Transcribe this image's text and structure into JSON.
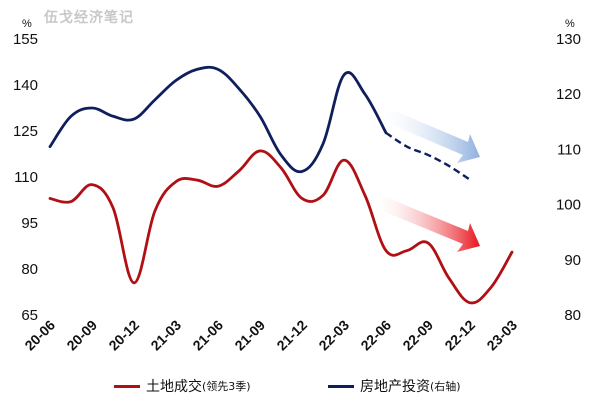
{
  "watermark": "伍戈经济笔记",
  "chart_data": {
    "type": "line",
    "x": [
      "20-06",
      "20-09",
      "20-12",
      "21-03",
      "21-06",
      "21-09",
      "21-12",
      "22-03",
      "22-06",
      "22-09",
      "22-12",
      "23-03"
    ],
    "left_axis": {
      "unit": "%",
      "ylim": [
        65,
        155
      ],
      "ticks": [
        65,
        80,
        95,
        110,
        125,
        140,
        155
      ]
    },
    "right_axis": {
      "unit": "%",
      "ylim": [
        80,
        130
      ],
      "ticks": [
        80,
        90,
        100,
        110,
        120,
        130
      ]
    },
    "series": [
      {
        "name": "土地成交",
        "name_sub": "(领先3季)",
        "axis": "left",
        "color": "#b00f14",
        "points": [
          [
            "20-06",
            103
          ],
          [
            "20-07.5",
            102
          ],
          [
            "20-09",
            107.5
          ],
          [
            "20-10.5",
            100
          ],
          [
            "20-12",
            75.5
          ],
          [
            "21-01.5",
            99
          ],
          [
            "21-03",
            108.5
          ],
          [
            "21-04.5",
            109
          ],
          [
            "21-06",
            107
          ],
          [
            "21-07.5",
            112
          ],
          [
            "21-09",
            118.5
          ],
          [
            "21-10.5",
            113
          ],
          [
            "21-12",
            103
          ],
          [
            "21-13.5",
            104
          ],
          [
            "22-03",
            115.5
          ],
          [
            "22-04.5",
            104
          ],
          [
            "22-06",
            86
          ],
          [
            "22-07.5",
            86
          ],
          [
            "22-09",
            88.5
          ],
          [
            "22-10.5",
            77
          ],
          [
            "22-12",
            69
          ],
          [
            "22-13.5",
            74
          ],
          [
            "23-03",
            85.5
          ]
        ]
      },
      {
        "name": "房地产投资",
        "name_sub": "(右轴)",
        "axis": "right",
        "color": "#0f1f5c",
        "points": [
          [
            "20-06",
            110.5
          ],
          [
            "20-07.5",
            116
          ],
          [
            "20-09",
            117.5
          ],
          [
            "20-10.5",
            116
          ],
          [
            "20-12",
            115.5
          ],
          [
            "21-01.5",
            119
          ],
          [
            "21-03",
            122.5
          ],
          [
            "21-04.5",
            124.5
          ],
          [
            "21-06",
            124.5
          ],
          [
            "21-07.5",
            121
          ],
          [
            "21-09",
            116
          ],
          [
            "21-10.5",
            109
          ],
          [
            "21-12",
            106
          ],
          [
            "21-13.5",
            111
          ],
          [
            "22-03",
            123.5
          ],
          [
            "22-04.5",
            120
          ],
          [
            "22-06",
            113
          ]
        ],
        "dashed_points": [
          [
            "22-06",
            113
          ],
          [
            "22-07.5",
            110.5
          ],
          [
            "22-09",
            109
          ],
          [
            "22-10.5",
            107
          ],
          [
            "22-12",
            104.5
          ]
        ]
      }
    ]
  }
}
